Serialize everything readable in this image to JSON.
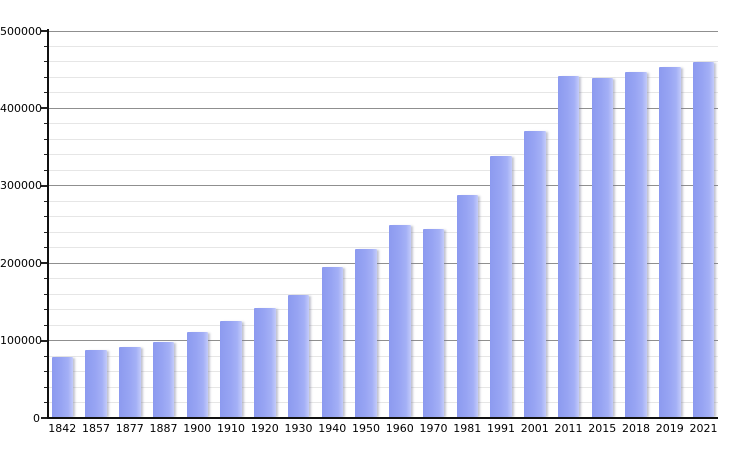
{
  "chart_data": {
    "type": "bar",
    "title": "",
    "xlabel": "",
    "ylabel": "",
    "legend": "none",
    "grid": "horizontal major and minor gridlines, no vertical gridlines",
    "ylim": [
      0,
      500000
    ],
    "y_major_step": 100000,
    "y_minor_step": 20000,
    "y_tick_labels": [
      "500000",
      "400000",
      "300000",
      "200000",
      "100000",
      "0"
    ],
    "categories": [
      "1842",
      "1857",
      "1877",
      "1887",
      "1900",
      "1910",
      "1920",
      "1930",
      "1940",
      "1950",
      "1960",
      "1970",
      "1981",
      "1991",
      "2001",
      "2011",
      "2015",
      "2018",
      "2019",
      "2021"
    ],
    "values": [
      79030,
      87803,
      91805,
      98538,
      111693,
      125057,
      141846,
      158724,
      195145,
      218375,
      249738,
      243759,
      288631,
      338250,
      370745,
      441354,
      439712,
      447182,
      453258,
      460349
    ],
    "bar_color": "#97a4f3",
    "bar_gradient_left": "#8c9aef",
    "bar_gradient_right": "#c3cbfa",
    "major_gridline_color": "#8f8f8f",
    "minor_gridline_color": "#e6e6e6",
    "axis_color": "#111111",
    "text_color": "#000000",
    "background_color": "#ffffff"
  }
}
